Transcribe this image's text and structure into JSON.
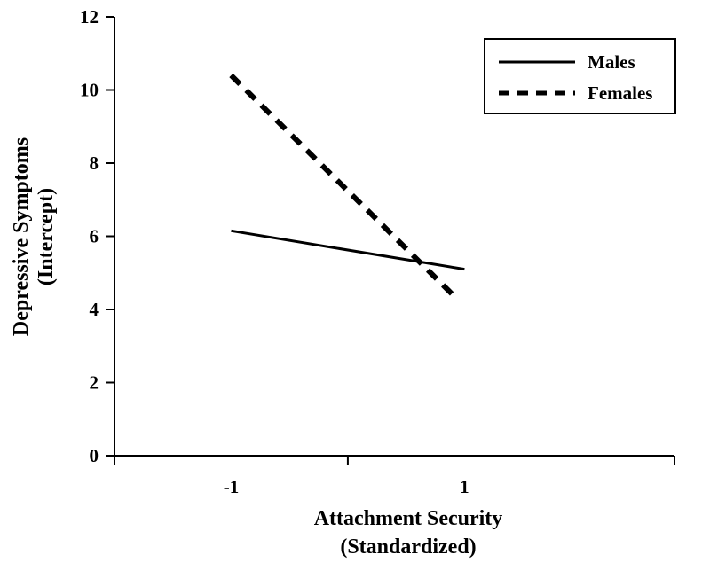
{
  "chart_data": {
    "type": "line",
    "title": "",
    "xlabel": [
      "Attachment Security",
      "(Standardized)"
    ],
    "ylabel": [
      "Depressive Symptoms",
      "(Intercept)"
    ],
    "xlim": [
      -2,
      2.8
    ],
    "ylim": [
      0,
      12
    ],
    "x_ticks": [
      -2,
      0,
      2.8
    ],
    "x_tick_labels": [
      {
        "value": -1,
        "label": "-1"
      },
      {
        "value": 1,
        "label": "1"
      }
    ],
    "y_ticks": [
      0,
      2,
      4,
      6,
      8,
      10,
      12
    ],
    "y_tick_labels": [
      "0",
      "2",
      "4",
      "6",
      "8",
      "10",
      "12"
    ],
    "grid": false,
    "legend_position": "top-right",
    "series": [
      {
        "name": "Males",
        "style": "solid",
        "color": "#000000",
        "x": [
          -1,
          1
        ],
        "y": [
          6.15,
          5.1
        ]
      },
      {
        "name": "Females",
        "style": "dashed",
        "color": "#000000",
        "x": [
          -1,
          0.9
        ],
        "y": [
          10.4,
          4.4
        ]
      }
    ]
  }
}
